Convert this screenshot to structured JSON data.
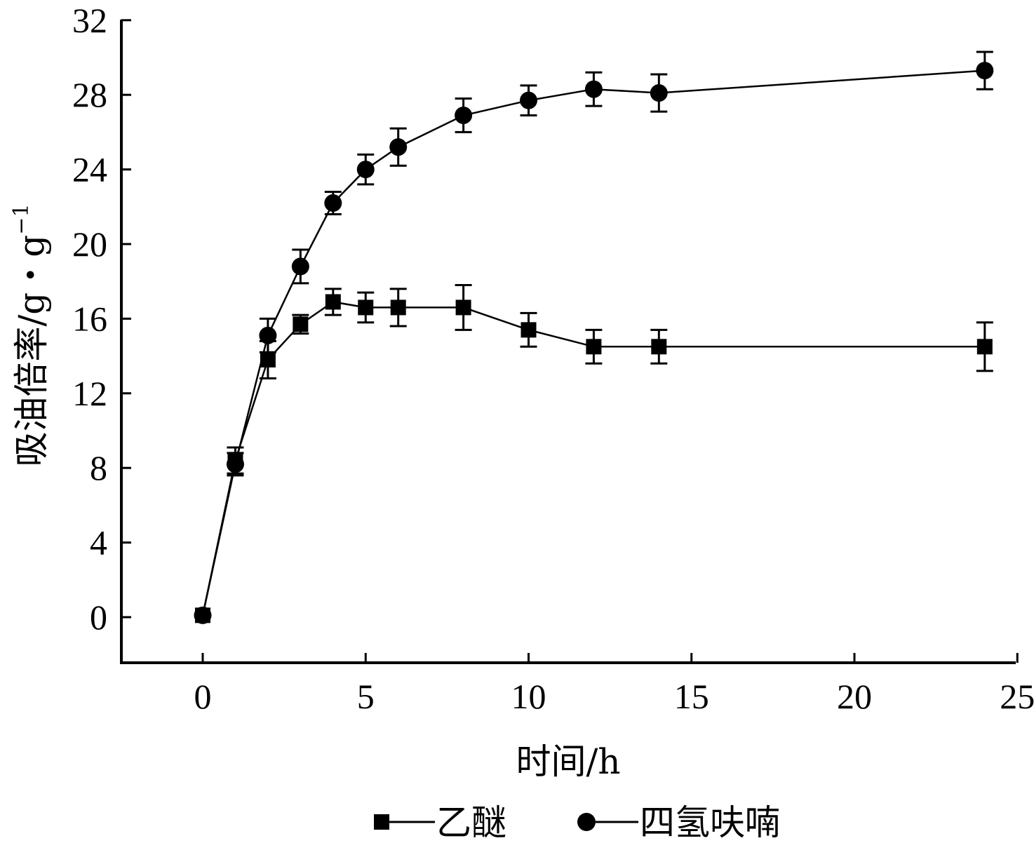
{
  "chart_data": {
    "type": "line",
    "xlabel": "时间/h",
    "ylabel": "吸油倍率/g・g",
    "ylabel_superscript": "−1",
    "xlim": [
      -2.5,
      25
    ],
    "ylim": [
      -2.5,
      32
    ],
    "xticks": [
      "0",
      "5",
      "10",
      "15",
      "20",
      "25"
    ],
    "yticks": [
      "0",
      "4",
      "8",
      "12",
      "16",
      "20",
      "24",
      "28",
      "32"
    ],
    "grid": false,
    "legend_position": "bottom",
    "series": [
      {
        "name": "乙醚",
        "marker": "square",
        "color": "#000000",
        "x": [
          0,
          1,
          2,
          3,
          4,
          5,
          6,
          8,
          10,
          12,
          14,
          24
        ],
        "y": [
          0.1,
          8.4,
          13.8,
          15.7,
          16.9,
          16.6,
          16.6,
          16.6,
          15.4,
          14.5,
          14.5,
          14.5
        ],
        "error": [
          0.3,
          0.7,
          1.0,
          0.5,
          0.7,
          0.8,
          1.0,
          1.2,
          0.9,
          0.9,
          0.9,
          1.3
        ]
      },
      {
        "name": "四氢呋喃",
        "marker": "circle",
        "color": "#000000",
        "x": [
          0,
          1,
          2,
          3,
          4,
          5,
          6,
          8,
          10,
          12,
          14,
          24
        ],
        "y": [
          0.1,
          8.2,
          15.1,
          18.8,
          22.2,
          24.0,
          25.2,
          26.9,
          27.7,
          28.3,
          28.1,
          29.3
        ],
        "error": [
          0.3,
          0.6,
          0.9,
          0.9,
          0.6,
          0.8,
          1.0,
          0.9,
          0.8,
          0.9,
          1.0,
          1.0
        ]
      }
    ]
  }
}
